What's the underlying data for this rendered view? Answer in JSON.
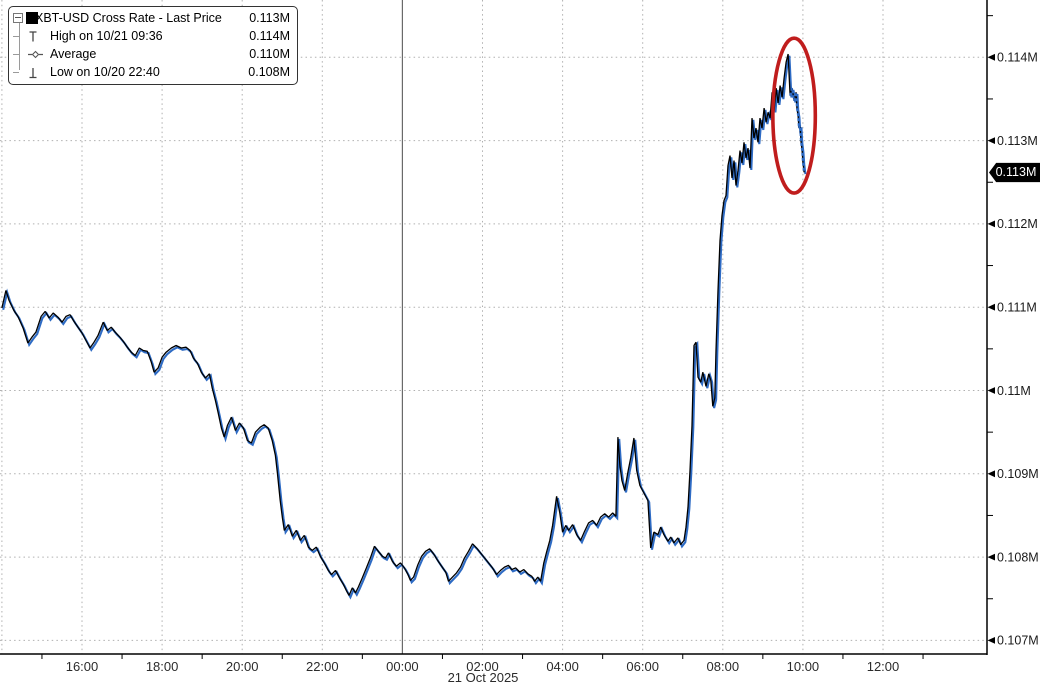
{
  "legend": {
    "items": [
      {
        "marker": "series-swatch",
        "label": "XBT-USD Cross Rate - Last Price",
        "value": "0.113M"
      },
      {
        "marker": "high-marker",
        "label": "High on 10/21 09:36",
        "value": "0.114M"
      },
      {
        "marker": "average-marker",
        "label": "Average",
        "value": "0.110M"
      },
      {
        "marker": "low-marker",
        "label": "Low on 10/20 22:40",
        "value": "0.108M"
      }
    ]
  },
  "axes": {
    "x_date_label": "21 Oct 2025",
    "x_tick_labels": [
      "16:00",
      "18:00",
      "20:00",
      "22:00",
      "00:00",
      "02:00",
      "04:00",
      "06:00",
      "08:00",
      "10:00",
      "12:00"
    ],
    "y_tick_labels": [
      "0.114M",
      "0.113M",
      "0.112M",
      "0.111M",
      "0.11M",
      "0.109M",
      "0.108M",
      "0.107M"
    ]
  },
  "last_price_badge": "0.113M",
  "chart_data": {
    "type": "line",
    "title": "XBT-USD Cross Rate - Last Price",
    "x_unit": "hours since 2025-10-20 14:00",
    "xlim": [
      0,
      24.6
    ],
    "ylim": [
      0.1068,
      0.1147
    ],
    "grid": "dotted",
    "legend_position": "top-left",
    "last_price": "0.113M",
    "high": {
      "time": "10/21 09:36",
      "t": 19.6,
      "value": 0.114
    },
    "low": {
      "time": "10/20 22:40",
      "t": 8.67,
      "value": 0.108
    },
    "average": 0.11,
    "x_ticks": [
      {
        "t": 2,
        "label": "16:00"
      },
      {
        "t": 4,
        "label": "18:00"
      },
      {
        "t": 6,
        "label": "20:00"
      },
      {
        "t": 8,
        "label": "22:00"
      },
      {
        "t": 10,
        "label": "00:00"
      },
      {
        "t": 12,
        "label": "02:00"
      },
      {
        "t": 14,
        "label": "04:00"
      },
      {
        "t": 16,
        "label": "06:00"
      },
      {
        "t": 18,
        "label": "08:00"
      },
      {
        "t": 20,
        "label": "10:00"
      },
      {
        "t": 22,
        "label": "12:00"
      }
    ],
    "y_ticks": [
      {
        "p": 0.114,
        "label": "0.114M"
      },
      {
        "p": 0.113,
        "label": "0.113M"
      },
      {
        "p": 0.112,
        "label": "0.112M"
      },
      {
        "p": 0.111,
        "label": "0.111M"
      },
      {
        "p": 0.11,
        "label": "0.11M"
      },
      {
        "p": 0.109,
        "label": "0.109M"
      },
      {
        "p": 0.108,
        "label": "0.108M"
      },
      {
        "p": 0.107,
        "label": "0.107M"
      }
    ],
    "session_break_t": 10,
    "annotation_ellipse": {
      "t": 19.78,
      "p": 0.1133,
      "rt": 0.53,
      "rp": 0.00093,
      "color": "#c01d1d"
    },
    "colors": {
      "line": "#000000",
      "shadow": "#2e6bc4",
      "grid": "#b0b0b0",
      "session": "#6a6a6a",
      "axis": "#000000",
      "tick_text": "#1a1a1a"
    },
    "series": [
      {
        "name": "XBT-USD Cross Rate - Last Price",
        "color": "#000000",
        "blue_tail_from_t": 19.66,
        "points": [
          [
            0,
            0.11099
          ],
          [
            0.1,
            0.1112
          ],
          [
            0.18,
            0.11108
          ],
          [
            0.3,
            0.11096
          ],
          [
            0.4,
            0.11089
          ],
          [
            0.53,
            0.11075
          ],
          [
            0.65,
            0.11057
          ],
          [
            0.75,
            0.11064
          ],
          [
            0.85,
            0.1107
          ],
          [
            0.98,
            0.11089
          ],
          [
            1.08,
            0.11095
          ],
          [
            1.18,
            0.11087
          ],
          [
            1.28,
            0.11093
          ],
          [
            1.4,
            0.11088
          ],
          [
            1.5,
            0.11082
          ],
          [
            1.6,
            0.11089
          ],
          [
            1.7,
            0.11091
          ],
          [
            1.8,
            0.11083
          ],
          [
            1.9,
            0.11076
          ],
          [
            2,
            0.11069
          ],
          [
            2.1,
            0.1106
          ],
          [
            2.2,
            0.11051
          ],
          [
            2.3,
            0.11058
          ],
          [
            2.4,
            0.11066
          ],
          [
            2.53,
            0.11082
          ],
          [
            2.63,
            0.11072
          ],
          [
            2.73,
            0.11076
          ],
          [
            2.83,
            0.1107
          ],
          [
            2.93,
            0.11065
          ],
          [
            3.03,
            0.11059
          ],
          [
            3.13,
            0.11052
          ],
          [
            3.23,
            0.11046
          ],
          [
            3.33,
            0.11042
          ],
          [
            3.43,
            0.11051
          ],
          [
            3.53,
            0.11048
          ],
          [
            3.63,
            0.11047
          ],
          [
            3.73,
            0.11034
          ],
          [
            3.8,
            0.11022
          ],
          [
            3.9,
            0.11027
          ],
          [
            4,
            0.1104
          ],
          [
            4.1,
            0.11046
          ],
          [
            4.23,
            0.11051
          ],
          [
            4.35,
            0.11054
          ],
          [
            4.48,
            0.11051
          ],
          [
            4.6,
            0.11052
          ],
          [
            4.7,
            0.11048
          ],
          [
            4.78,
            0.11039
          ],
          [
            4.88,
            0.11033
          ],
          [
            4.98,
            0.11022
          ],
          [
            5.08,
            0.11015
          ],
          [
            5.18,
            0.1102
          ],
          [
            5.25,
            0.11003
          ],
          [
            5.33,
            0.10988
          ],
          [
            5.4,
            0.10973
          ],
          [
            5.48,
            0.10955
          ],
          [
            5.55,
            0.10944
          ],
          [
            5.63,
            0.10958
          ],
          [
            5.73,
            0.10968
          ],
          [
            5.83,
            0.10952
          ],
          [
            5.93,
            0.10961
          ],
          [
            6.03,
            0.10955
          ],
          [
            6.13,
            0.1094
          ],
          [
            6.23,
            0.10937
          ],
          [
            6.33,
            0.1095
          ],
          [
            6.45,
            0.10956
          ],
          [
            6.55,
            0.10959
          ],
          [
            6.65,
            0.10955
          ],
          [
            6.75,
            0.1094
          ],
          [
            6.83,
            0.10922
          ],
          [
            6.88,
            0.10901
          ],
          [
            6.95,
            0.10868
          ],
          [
            7,
            0.10848
          ],
          [
            7.05,
            0.10832
          ],
          [
            7.15,
            0.10839
          ],
          [
            7.25,
            0.10825
          ],
          [
            7.35,
            0.10832
          ],
          [
            7.45,
            0.1082
          ],
          [
            7.55,
            0.10826
          ],
          [
            7.65,
            0.10812
          ],
          [
            7.75,
            0.10808
          ],
          [
            7.85,
            0.10812
          ],
          [
            7.95,
            0.10801
          ],
          [
            8.05,
            0.10793
          ],
          [
            8.15,
            0.10784
          ],
          [
            8.23,
            0.10779
          ],
          [
            8.33,
            0.10784
          ],
          [
            8.43,
            0.10775
          ],
          [
            8.53,
            0.10767
          ],
          [
            8.6,
            0.1076
          ],
          [
            8.67,
            0.10754
          ],
          [
            8.75,
            0.10763
          ],
          [
            8.83,
            0.10757
          ],
          [
            8.9,
            0.10764
          ],
          [
            9,
            0.10775
          ],
          [
            9.1,
            0.10787
          ],
          [
            9.2,
            0.10799
          ],
          [
            9.3,
            0.10813
          ],
          [
            9.4,
            0.10807
          ],
          [
            9.5,
            0.10801
          ],
          [
            9.58,
            0.10799
          ],
          [
            9.65,
            0.10805
          ],
          [
            9.75,
            0.10795
          ],
          [
            9.85,
            0.10789
          ],
          [
            9.95,
            0.10793
          ],
          [
            10.05,
            0.10787
          ],
          [
            10.13,
            0.1078
          ],
          [
            10.2,
            0.10772
          ],
          [
            10.28,
            0.10776
          ],
          [
            10.38,
            0.1079
          ],
          [
            10.48,
            0.10801
          ],
          [
            10.58,
            0.10807
          ],
          [
            10.68,
            0.1081
          ],
          [
            10.78,
            0.10804
          ],
          [
            10.88,
            0.10796
          ],
          [
            10.98,
            0.10789
          ],
          [
            11.08,
            0.10782
          ],
          [
            11.15,
            0.10771
          ],
          [
            11.25,
            0.10776
          ],
          [
            11.35,
            0.10781
          ],
          [
            11.45,
            0.10788
          ],
          [
            11.55,
            0.10799
          ],
          [
            11.65,
            0.10807
          ],
          [
            11.75,
            0.10816
          ],
          [
            11.85,
            0.10811
          ],
          [
            11.95,
            0.10805
          ],
          [
            12.05,
            0.10799
          ],
          [
            12.15,
            0.10793
          ],
          [
            12.25,
            0.10787
          ],
          [
            12.35,
            0.10779
          ],
          [
            12.45,
            0.10784
          ],
          [
            12.55,
            0.10788
          ],
          [
            12.65,
            0.1079
          ],
          [
            12.73,
            0.10785
          ],
          [
            12.83,
            0.10787
          ],
          [
            12.93,
            0.10782
          ],
          [
            13.03,
            0.10785
          ],
          [
            13.13,
            0.1078
          ],
          [
            13.23,
            0.10777
          ],
          [
            13.3,
            0.10771
          ],
          [
            13.38,
            0.10776
          ],
          [
            13.45,
            0.10771
          ],
          [
            13.53,
            0.10793
          ],
          [
            13.6,
            0.10806
          ],
          [
            13.68,
            0.1082
          ],
          [
            13.75,
            0.10838
          ],
          [
            13.85,
            0.10873
          ],
          [
            13.93,
            0.10853
          ],
          [
            14,
            0.1083
          ],
          [
            14.08,
            0.10838
          ],
          [
            14.15,
            0.10832
          ],
          [
            14.25,
            0.10839
          ],
          [
            14.35,
            0.10827
          ],
          [
            14.45,
            0.1082
          ],
          [
            14.55,
            0.10831
          ],
          [
            14.65,
            0.10841
          ],
          [
            14.75,
            0.10844
          ],
          [
            14.85,
            0.10838
          ],
          [
            14.95,
            0.10848
          ],
          [
            15.05,
            0.10852
          ],
          [
            15.15,
            0.10848
          ],
          [
            15.25,
            0.10853
          ],
          [
            15.33,
            0.10849
          ],
          [
            15.38,
            0.10944
          ],
          [
            15.43,
            0.1091
          ],
          [
            15.48,
            0.10892
          ],
          [
            15.55,
            0.1088
          ],
          [
            15.63,
            0.10902
          ],
          [
            15.7,
            0.10919
          ],
          [
            15.78,
            0.10943
          ],
          [
            15.85,
            0.10904
          ],
          [
            15.93,
            0.10886
          ],
          [
            16.03,
            0.10877
          ],
          [
            16.13,
            0.10868
          ],
          [
            16.2,
            0.10811
          ],
          [
            16.28,
            0.1083
          ],
          [
            16.38,
            0.10827
          ],
          [
            16.45,
            0.10836
          ],
          [
            16.53,
            0.10827
          ],
          [
            16.63,
            0.10819
          ],
          [
            16.7,
            0.10824
          ],
          [
            16.78,
            0.10817
          ],
          [
            16.88,
            0.10823
          ],
          [
            16.95,
            0.10815
          ],
          [
            17.03,
            0.1082
          ],
          [
            17.08,
            0.10836
          ],
          [
            17.13,
            0.1086
          ],
          [
            17.18,
            0.10904
          ],
          [
            17.23,
            0.10958
          ],
          [
            17.28,
            0.11054
          ],
          [
            17.33,
            0.11058
          ],
          [
            17.38,
            0.11016
          ],
          [
            17.45,
            0.1101
          ],
          [
            17.5,
            0.11022
          ],
          [
            17.58,
            0.11005
          ],
          [
            17.65,
            0.1102
          ],
          [
            17.7,
            0.11012
          ],
          [
            17.75,
            0.10981
          ],
          [
            17.8,
            0.10991
          ],
          [
            17.83,
            0.11048
          ],
          [
            17.88,
            0.1112
          ],
          [
            17.93,
            0.1118
          ],
          [
            17.98,
            0.1121
          ],
          [
            18.03,
            0.11228
          ],
          [
            18.08,
            0.11234
          ],
          [
            18.13,
            0.1127
          ],
          [
            18.18,
            0.11282
          ],
          [
            18.23,
            0.11255
          ],
          [
            18.28,
            0.11276
          ],
          [
            18.33,
            0.11246
          ],
          [
            18.38,
            0.11264
          ],
          [
            18.43,
            0.11288
          ],
          [
            18.48,
            0.11273
          ],
          [
            18.53,
            0.11298
          ],
          [
            18.58,
            0.11279
          ],
          [
            18.63,
            0.11291
          ],
          [
            18.68,
            0.11267
          ],
          [
            18.73,
            0.11327
          ],
          [
            18.78,
            0.11303
          ],
          [
            18.83,
            0.11315
          ],
          [
            18.88,
            0.11298
          ],
          [
            18.93,
            0.11327
          ],
          [
            18.98,
            0.11315
          ],
          [
            19.03,
            0.11339
          ],
          [
            19.08,
            0.11322
          ],
          [
            19.13,
            0.11334
          ],
          [
            19.18,
            0.11327
          ],
          [
            19.23,
            0.11358
          ],
          [
            19.28,
            0.11336
          ],
          [
            19.33,
            0.11363
          ],
          [
            19.38,
            0.11345
          ],
          [
            19.43,
            0.11366
          ],
          [
            19.48,
            0.11352
          ],
          [
            19.53,
            0.11375
          ],
          [
            19.58,
            0.11394
          ],
          [
            19.63,
            0.11404
          ],
          [
            19.68,
            0.11354
          ],
          [
            19.73,
            0.11363
          ],
          [
            19.78,
            0.11348
          ],
          [
            19.83,
            0.11358
          ],
          [
            19.85,
            0.11339
          ],
          [
            19.88,
            0.1133
          ],
          [
            19.9,
            0.11315
          ],
          [
            19.93,
            0.11318
          ],
          [
            19.95,
            0.113
          ],
          [
            19.98,
            0.11288
          ],
          [
            20,
            0.11274
          ],
          [
            20.03,
            0.11262
          ]
        ]
      }
    ]
  }
}
